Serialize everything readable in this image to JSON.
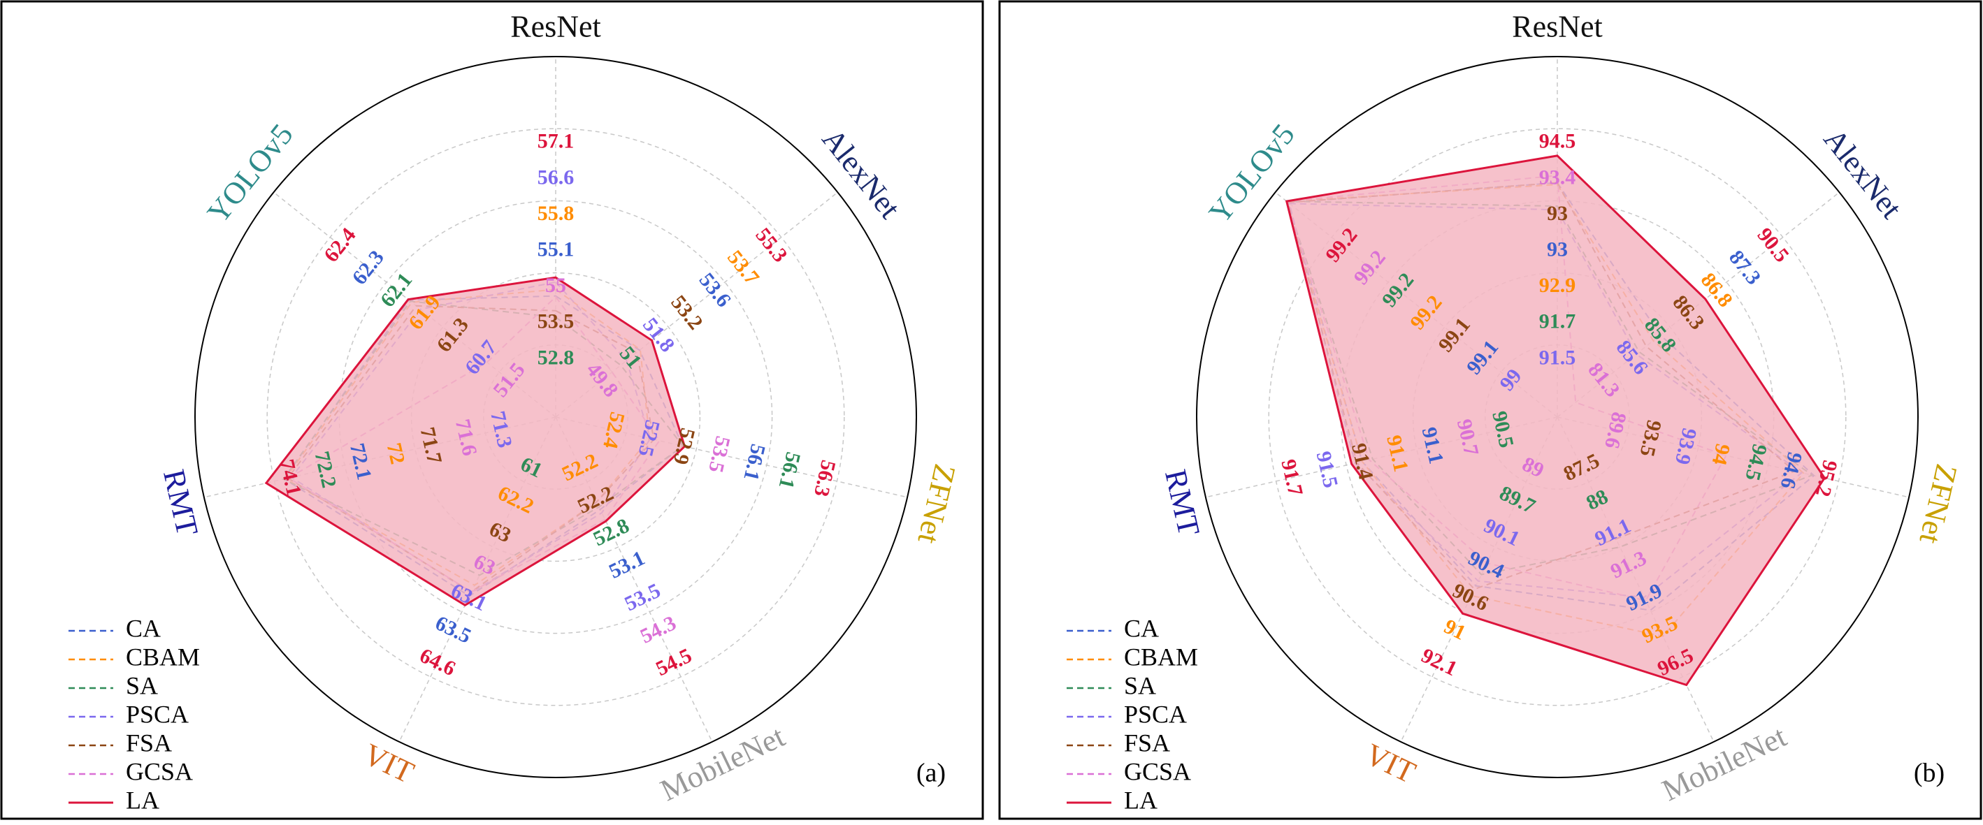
{
  "chart_data": [
    {
      "type": "radar",
      "label": "(a)",
      "categories": [
        "ResNet",
        "AlexNet",
        "ZFNet",
        "MobileNet",
        "VIT",
        "RMT",
        "YOLOv5"
      ],
      "category_colors": [
        "#111111",
        "#1a2a6c",
        "#c8a000",
        "#999999",
        "#d2691e",
        "#1c1c9c",
        "#2e8b8b"
      ],
      "rlim": [
        42,
        81
      ],
      "grid": true,
      "legend": "lower left",
      "series": [
        {
          "name": "CA",
          "color": "#3a5fcd",
          "linestyle": "dashed",
          "values": [
            55.1,
            53.6,
            56.1,
            53.1,
            63.5,
            72.1,
            62.3
          ]
        },
        {
          "name": "CBAM",
          "color": "#ff8c00",
          "linestyle": "dashed",
          "values": [
            55.8,
            53.7,
            52.4,
            52.2,
            62.2,
            72.0,
            61.9
          ]
        },
        {
          "name": "SA",
          "color": "#2e8b57",
          "linestyle": "dashed",
          "values": [
            52.8,
            51.0,
            56.1,
            52.8,
            61.0,
            72.2,
            62.1
          ]
        },
        {
          "name": "PSCA",
          "color": "#7b68ee",
          "linestyle": "dashed",
          "values": [
            56.6,
            51.8,
            52.5,
            53.5,
            63.1,
            71.3,
            60.7
          ]
        },
        {
          "name": "FSA",
          "color": "#8b4513",
          "linestyle": "dashed",
          "values": [
            53.5,
            53.2,
            52.9,
            52.2,
            63.0,
            71.7,
            61.3
          ]
        },
        {
          "name": "GCSA",
          "color": "#da70d6",
          "linestyle": "dashed",
          "values": [
            55.0,
            49.8,
            53.5,
            54.3,
            63.0,
            71.6,
            51.5
          ]
        },
        {
          "name": "LA",
          "color": "#dc143c",
          "linestyle": "solid",
          "fill": "#f4b6c2",
          "values": [
            57.1,
            55.3,
            56.3,
            54.5,
            64.6,
            74.1,
            62.4
          ]
        }
      ]
    },
    {
      "type": "radar",
      "label": "(b)",
      "categories": [
        "ResNet",
        "AlexNet",
        "ZFNet",
        "MobileNet",
        "VIT",
        "RMT",
        "YOLOv5"
      ],
      "category_colors": [
        "#111111",
        "#1a2a6c",
        "#c8a000",
        "#999999",
        "#d2691e",
        "#1c1c9c",
        "#2e8b8b"
      ],
      "rlim": [
        80,
        100
      ],
      "grid": true,
      "legend": "lower left",
      "series": [
        {
          "name": "CA",
          "color": "#3a5fcd",
          "linestyle": "dashed",
          "values": [
            93.0,
            87.3,
            94.6,
            91.9,
            90.4,
            91.1,
            99.1
          ]
        },
        {
          "name": "CBAM",
          "color": "#ff8c00",
          "linestyle": "dashed",
          "values": [
            92.9,
            86.8,
            94.0,
            93.5,
            91.0,
            91.1,
            99.2
          ]
        },
        {
          "name": "SA",
          "color": "#2e8b57",
          "linestyle": "dashed",
          "values": [
            91.7,
            85.8,
            94.5,
            88.0,
            89.7,
            90.5,
            99.2
          ]
        },
        {
          "name": "PSCA",
          "color": "#7b68ee",
          "linestyle": "dashed",
          "values": [
            91.5,
            85.6,
            93.9,
            91.1,
            90.1,
            91.5,
            99.0
          ]
        },
        {
          "name": "FSA",
          "color": "#8b4513",
          "linestyle": "dashed",
          "values": [
            93.0,
            86.3,
            93.5,
            87.5,
            90.6,
            91.4,
            99.1
          ]
        },
        {
          "name": "GCSA",
          "color": "#da70d6",
          "linestyle": "dashed",
          "values": [
            93.4,
            81.3,
            89.6,
            91.3,
            89.0,
            90.7,
            99.2
          ]
        },
        {
          "name": "LA",
          "color": "#dc143c",
          "linestyle": "solid",
          "fill": "#f4b6c2",
          "values": [
            94.5,
            90.5,
            95.2,
            96.5,
            92.1,
            91.7,
            99.2
          ]
        }
      ]
    }
  ]
}
